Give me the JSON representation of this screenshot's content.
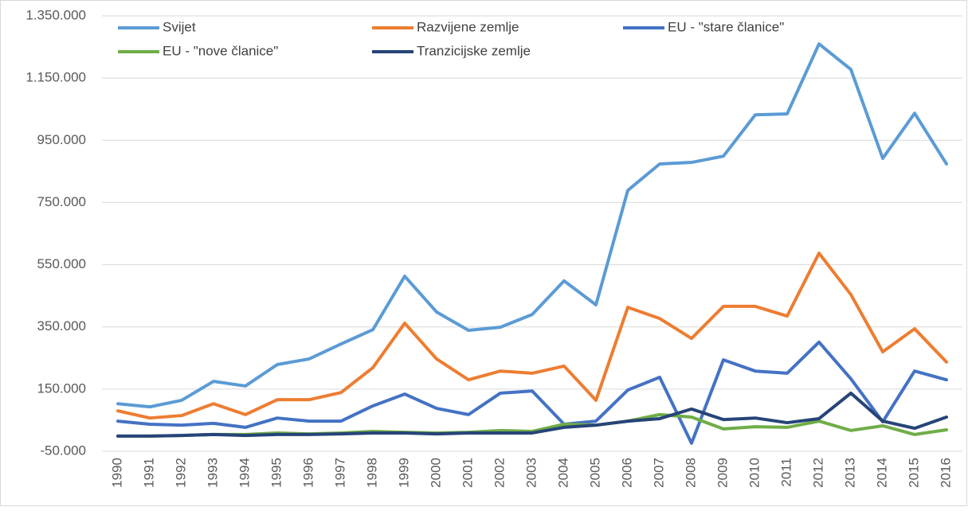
{
  "chart_data": {
    "type": "line",
    "categories": [
      "1990",
      "1991",
      "1992",
      "1993",
      "1994",
      "1995",
      "1996",
      "1997",
      "1998",
      "1999",
      "2000",
      "2001",
      "2002",
      "2003",
      "2004",
      "2005",
      "2006",
      "2007",
      "2008",
      "2009",
      "2010",
      "2011",
      "2012",
      "2013",
      "2014",
      "2015",
      "2016"
    ],
    "series": [
      {
        "name": "Svijet",
        "color": "#5b9bd5",
        "values": [
          103000,
          93000,
          114000,
          175000,
          160000,
          229000,
          247000,
          295000,
          341000,
          513000,
          398000,
          339000,
          349000,
          390000,
          498000,
          421000,
          789000,
          874000,
          879000,
          899000,
          1032000,
          1035000,
          1260000,
          1178000,
          892000,
          1037000,
          874000
        ]
      },
      {
        "name": "Razvijene zemlje",
        "color": "#ed7d31",
        "values": [
          80000,
          57000,
          65000,
          103000,
          68000,
          116000,
          116000,
          139000,
          219000,
          362000,
          247000,
          180000,
          208000,
          201000,
          224000,
          114000,
          413000,
          377000,
          313000,
          416000,
          416000,
          385000,
          587000,
          454000,
          270000,
          344000,
          237000
        ]
      },
      {
        "name": "EU - \"stare članice\"",
        "color": "#4472c4",
        "values": [
          47000,
          37000,
          34000,
          40000,
          27000,
          57000,
          47000,
          47000,
          96000,
          134000,
          88000,
          68000,
          137000,
          144000,
          37000,
          47000,
          147000,
          188000,
          -24000,
          244000,
          208000,
          201000,
          301000,
          183000,
          45000,
          208000,
          180000
        ]
      },
      {
        "name": "EU - \"nove članice\"",
        "color": "#70ad47",
        "values": [
          -1000,
          -1000,
          1000,
          4000,
          4000,
          9000,
          6000,
          9000,
          14000,
          11000,
          9000,
          11000,
          17000,
          14000,
          37000,
          34000,
          47000,
          68000,
          60000,
          22000,
          29000,
          27000,
          47000,
          17000,
          32000,
          4000,
          19000
        ]
      },
      {
        "name": "Tranzicijske zemlje",
        "color": "#264478",
        "values": [
          -1000,
          -1000,
          1000,
          4000,
          1000,
          4000,
          4000,
          6000,
          9000,
          9000,
          6000,
          9000,
          9000,
          9000,
          27000,
          34000,
          47000,
          55000,
          86000,
          52000,
          57000,
          42000,
          55000,
          137000,
          47000,
          24000,
          60000
        ]
      }
    ],
    "ylim": [
      -50000,
      1350000
    ],
    "yticks": [
      {
        "value": -50000,
        "label": "-50.000"
      },
      {
        "value": 150000,
        "label": "150.000"
      },
      {
        "value": 350000,
        "label": "350.000"
      },
      {
        "value": 550000,
        "label": "550.000"
      },
      {
        "value": 750000,
        "label": "750.000"
      },
      {
        "value": 950000,
        "label": "950.000"
      },
      {
        "value": 1150000,
        "label": "1.150.000"
      },
      {
        "value": 1350000,
        "label": "1.350.000"
      }
    ],
    "grid": true
  }
}
